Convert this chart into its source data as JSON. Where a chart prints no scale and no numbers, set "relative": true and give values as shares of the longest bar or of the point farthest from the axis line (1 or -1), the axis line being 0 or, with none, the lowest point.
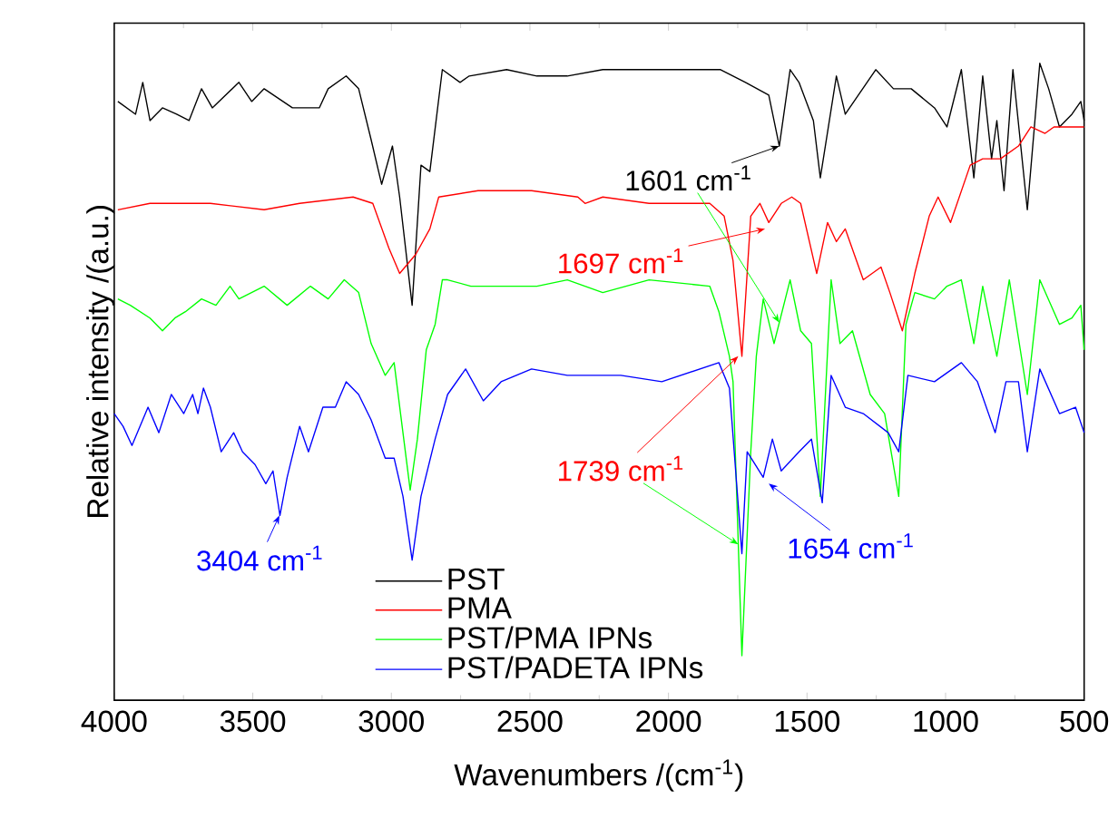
{
  "chart_data": {
    "type": "line",
    "relative": true,
    "xlabel": "Wavenumbers /(cm$^{-1}$)",
    "ylabel": "Relative intensity /(a.u.)",
    "xlim": [
      4000,
      500
    ],
    "xticks": [
      4000,
      3500,
      3000,
      2500,
      2000,
      1500,
      1000,
      500
    ],
    "legend": "bottom",
    "series": [
      {
        "name": "PST",
        "color": "#000000",
        "x": [
          3987,
          3923,
          3897,
          3871,
          3826,
          3775,
          3730,
          3685,
          3646,
          3550,
          3504,
          3459,
          3357,
          3260,
          3228,
          3163,
          3118,
          3073,
          3035,
          2996,
          2970,
          2925,
          2893,
          2861,
          2816,
          2752,
          2719,
          2584,
          2475,
          2365,
          2237,
          2070,
          1812,
          1722,
          1638,
          1600,
          1561,
          1529,
          1477,
          1452,
          1394,
          1362,
          1252,
          1188,
          1124,
          1040,
          995,
          943,
          898,
          866,
          834,
          815,
          789,
          757,
          705,
          660,
          628,
          589,
          544,
          512,
          500
        ],
        "values": [
          0.94,
          0.92,
          0.97,
          0.91,
          0.93,
          0.92,
          0.91,
          0.96,
          0.93,
          0.97,
          0.94,
          0.96,
          0.93,
          0.93,
          0.96,
          0.98,
          0.96,
          0.88,
          0.81,
          0.87,
          0.79,
          0.62,
          0.84,
          0.83,
          0.99,
          0.97,
          0.98,
          0.99,
          0.98,
          0.98,
          0.99,
          0.99,
          0.99,
          0.97,
          0.95,
          0.87,
          0.99,
          0.97,
          0.91,
          0.82,
          0.98,
          0.92,
          0.99,
          0.96,
          0.96,
          0.93,
          0.9,
          0.99,
          0.82,
          0.98,
          0.85,
          0.91,
          0.8,
          0.99,
          0.77,
          1.0,
          0.96,
          0.9,
          0.92,
          0.94,
          0.91
        ]
      },
      {
        "name": "PMA",
        "color": "#ff0000",
        "x": [
          3987,
          3871,
          3653,
          3459,
          3331,
          3138,
          3067,
          3009,
          2970,
          2912,
          2861,
          2829,
          2687,
          2494,
          2327,
          2301,
          2237,
          2070,
          1851,
          1799,
          1767,
          1735,
          1703,
          1670,
          1638,
          1593,
          1555,
          1523,
          1465,
          1426,
          1394,
          1362,
          1297,
          1233,
          1201,
          1156,
          1111,
          1059,
          1027,
          982,
          911,
          866,
          802,
          737,
          692,
          641,
          609,
          544,
          500
        ],
        "values": [
          0.77,
          0.78,
          0.78,
          0.77,
          0.78,
          0.79,
          0.78,
          0.71,
          0.67,
          0.7,
          0.74,
          0.79,
          0.8,
          0.8,
          0.79,
          0.78,
          0.79,
          0.78,
          0.78,
          0.76,
          0.69,
          0.54,
          0.76,
          0.78,
          0.75,
          0.78,
          0.79,
          0.78,
          0.67,
          0.75,
          0.72,
          0.74,
          0.66,
          0.68,
          0.64,
          0.58,
          0.67,
          0.76,
          0.79,
          0.75,
          0.84,
          0.85,
          0.85,
          0.87,
          0.9,
          0.89,
          0.9,
          0.9,
          0.9
        ]
      },
      {
        "name": "PST/PMA IPNs",
        "color": "#00ff00",
        "x": [
          3987,
          3942,
          3871,
          3826,
          3781,
          3743,
          3685,
          3633,
          3582,
          3550,
          3459,
          3376,
          3292,
          3228,
          3170,
          3118,
          3073,
          3022,
          2990,
          2932,
          2906,
          2874,
          2842,
          2816,
          2797,
          2713,
          2584,
          2475,
          2365,
          2237,
          2070,
          1851,
          1818,
          1780,
          1767,
          1735,
          1703,
          1683,
          1658,
          1619,
          1561,
          1523,
          1484,
          1452,
          1413,
          1381,
          1336,
          1272,
          1220,
          1169,
          1143,
          1111,
          1040,
          995,
          943,
          898,
          866,
          815,
          770,
          705,
          660,
          589,
          544,
          512,
          500
        ],
        "values": [
          0.63,
          0.62,
          0.6,
          0.58,
          0.6,
          0.61,
          0.63,
          0.62,
          0.65,
          0.63,
          0.65,
          0.62,
          0.65,
          0.63,
          0.66,
          0.64,
          0.56,
          0.51,
          0.53,
          0.33,
          0.41,
          0.55,
          0.59,
          0.66,
          0.66,
          0.65,
          0.65,
          0.65,
          0.66,
          0.64,
          0.66,
          0.65,
          0.61,
          0.54,
          0.5,
          0.07,
          0.39,
          0.54,
          0.63,
          0.56,
          0.66,
          0.58,
          0.56,
          0.32,
          0.66,
          0.56,
          0.58,
          0.48,
          0.45,
          0.32,
          0.59,
          0.64,
          0.63,
          0.65,
          0.66,
          0.56,
          0.65,
          0.54,
          0.66,
          0.48,
          0.66,
          0.59,
          0.6,
          0.62,
          0.55
        ]
      },
      {
        "name": "PST/PADETA IPNs",
        "color": "#0000ff",
        "x": [
          4000,
          3968,
          3936,
          3878,
          3839,
          3794,
          3749,
          3717,
          3698,
          3678,
          3653,
          3614,
          3569,
          3537,
          3492,
          3453,
          3427,
          3402,
          3376,
          3331,
          3299,
          3247,
          3202,
          3163,
          3118,
          3073,
          3022,
          2990,
          2958,
          2925,
          2893,
          2842,
          2797,
          2732,
          2668,
          2604,
          2494,
          2365,
          2282,
          2172,
          2024,
          1818,
          1780,
          1735,
          1716,
          1658,
          1625,
          1593,
          1529,
          1484,
          1445,
          1413,
          1362,
          1297,
          1207,
          1169,
          1136,
          1040,
          943,
          885,
          821,
          782,
          737,
          705,
          660,
          589,
          531,
          500
        ],
        "values": [
          0.45,
          0.43,
          0.4,
          0.46,
          0.42,
          0.48,
          0.45,
          0.48,
          0.45,
          0.49,
          0.46,
          0.39,
          0.42,
          0.39,
          0.37,
          0.34,
          0.36,
          0.29,
          0.35,
          0.43,
          0.39,
          0.46,
          0.46,
          0.5,
          0.48,
          0.44,
          0.38,
          0.38,
          0.32,
          0.22,
          0.32,
          0.41,
          0.48,
          0.52,
          0.47,
          0.5,
          0.52,
          0.51,
          0.51,
          0.51,
          0.5,
          0.53,
          0.49,
          0.23,
          0.39,
          0.35,
          0.41,
          0.36,
          0.39,
          0.41,
          0.31,
          0.51,
          0.46,
          0.45,
          0.42,
          0.39,
          0.51,
          0.5,
          0.53,
          0.5,
          0.42,
          0.5,
          0.5,
          0.39,
          0.52,
          0.45,
          0.46,
          0.42
        ]
      }
    ],
    "annotations": [
      {
        "text": "1601 cm$^{-1}$",
        "x": 1600,
        "y": 0.87
      },
      {
        "text": "1697 cm$^{-1}$",
        "x": 1651,
        "y": 0.74
      },
      {
        "text": "1739 cm$^{-1}$",
        "x": 1748,
        "y": 0.54
      },
      {
        "text": "3404 cm$^{-1}$",
        "x": 3404,
        "y": 0.29
      },
      {
        "text": "1654 cm$^{-1}$",
        "x": 1638,
        "y": 0.34
      }
    ]
  }
}
